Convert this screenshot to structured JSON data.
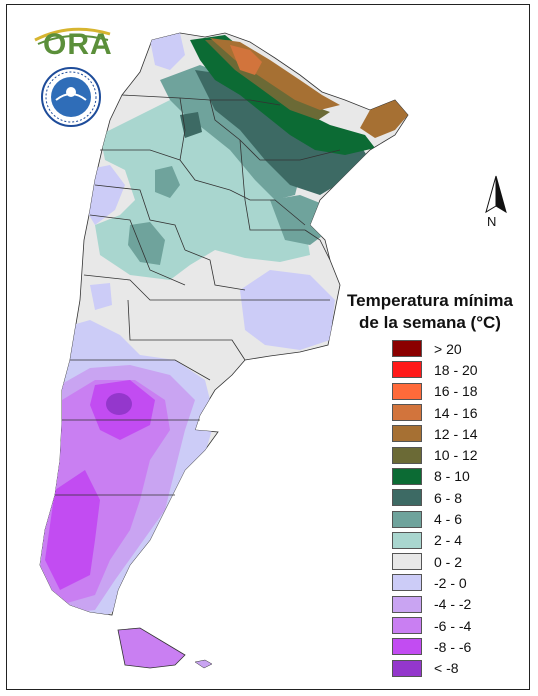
{
  "legend": {
    "title_line1": "Temperatura mínima",
    "title_line2": "de la semana (°C)",
    "items": [
      {
        "label": "> 20",
        "color": "#8b0000"
      },
      {
        "label": "18 - 20",
        "color": "#ff1a1a"
      },
      {
        "label": "16 - 18",
        "color": "#ff6a3a"
      },
      {
        "label": "14 - 16",
        "color": "#d2743c"
      },
      {
        "label": "12 - 14",
        "color": "#a67033"
      },
      {
        "label": "10 - 12",
        "color": "#6b6a36"
      },
      {
        "label": "8 - 10",
        "color": "#0c6b34"
      },
      {
        "label": "6 - 8",
        "color": "#3d6a64"
      },
      {
        "label": "4 - 6",
        "color": "#6fa39c"
      },
      {
        "label": "2 - 4",
        "color": "#a9d6cf"
      },
      {
        "label": "0 - 2",
        "color": "#e8e8e8"
      },
      {
        "label": "-2 - 0",
        "color": "#ccccf7"
      },
      {
        "label": "-4 - -2",
        "color": "#c9a4f2"
      },
      {
        "label": "-6 - -4",
        "color": "#c97ff2"
      },
      {
        "label": "-8 - -6",
        "color": "#c24cf2"
      },
      {
        "label": "< -8",
        "color": "#9437cc"
      }
    ]
  },
  "north_arrow": {
    "label": "N"
  },
  "logo": {
    "text": "ORA",
    "icon": "ora-logo-icon",
    "seal_icon": "smn-seal-icon"
  }
}
